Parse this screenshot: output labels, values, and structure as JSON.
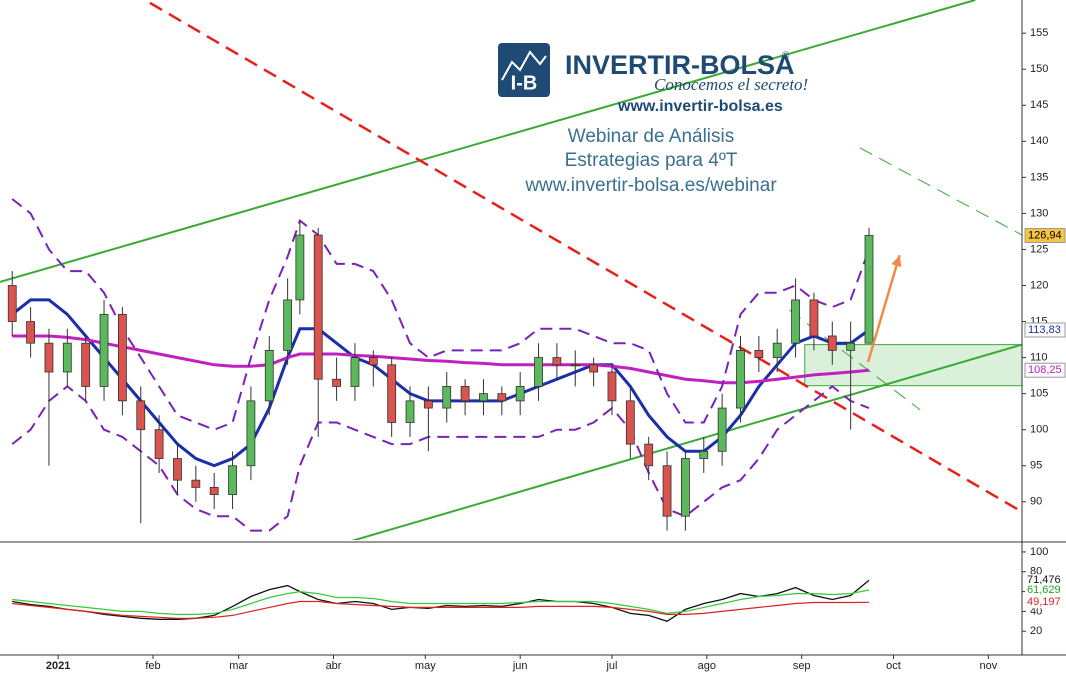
{
  "chart_data": {
    "type": "candlestick",
    "watermark": {
      "icon_text": "I-B",
      "brand": "INVERTIR-BOLSA",
      "registered": "®",
      "slogan": "Conocemos el secreto!",
      "site": "www.invertir-bolsa.es",
      "lines": [
        "Webinar de Análisis",
        "Estrategias para 4ºT",
        "www.invertir-bolsa.es/webinar"
      ]
    },
    "x": [
      -14,
      -8,
      -2,
      4,
      10,
      16,
      22,
      28,
      34,
      40,
      46,
      52,
      58,
      64,
      70,
      76,
      80,
      86,
      92,
      98,
      104,
      110,
      116,
      122,
      128,
      134,
      140,
      146,
      152,
      158,
      164,
      170,
      176,
      182,
      188,
      194,
      200,
      206,
      212,
      218,
      224,
      230,
      236,
      242,
      248,
      254,
      260,
      266
    ],
    "xlim": [
      -18,
      316
    ],
    "xticks": [
      {
        "value": 1,
        "label": "2021"
      },
      {
        "value": 32,
        "label": "feb"
      },
      {
        "value": 60,
        "label": "mar"
      },
      {
        "value": 91,
        "label": "abr"
      },
      {
        "value": 121,
        "label": "may"
      },
      {
        "value": 152,
        "label": "jun"
      },
      {
        "value": 182,
        "label": "jul"
      },
      {
        "value": 213,
        "label": "ago"
      },
      {
        "value": 244,
        "label": "sep"
      },
      {
        "value": 274,
        "label": "oct"
      },
      {
        "value": 305,
        "label": "nov"
      }
    ],
    "ylim": [
      84.7,
      159.6
    ],
    "yticks": [
      90,
      95,
      100,
      105,
      110,
      115,
      120,
      125,
      130,
      135,
      140,
      145,
      150,
      155
    ],
    "up_color": "#5cb85c",
    "down_color": "#d9534f",
    "open": [
      120,
      115,
      112,
      108,
      112,
      106,
      116,
      104,
      100,
      96,
      93,
      92,
      91,
      95,
      104,
      111,
      118,
      127,
      107,
      106,
      110,
      109,
      101,
      104,
      103,
      106,
      104,
      105,
      104,
      106,
      110,
      109,
      109,
      108,
      104,
      98,
      95,
      88,
      96,
      97,
      103,
      111,
      110,
      112,
      118,
      113,
      111,
      112
    ],
    "high": [
      122,
      117,
      114,
      114,
      113,
      118,
      117,
      106,
      102,
      98,
      95,
      94,
      97,
      106,
      113,
      121,
      129,
      128,
      110,
      112,
      111,
      110,
      106,
      106,
      108,
      107,
      107,
      106,
      108,
      112,
      112,
      111,
      110,
      109,
      106,
      99,
      97,
      97,
      99,
      105,
      113,
      113,
      114,
      121,
      119,
      115,
      115,
      128
    ],
    "low": [
      113,
      110,
      95,
      106,
      104,
      104,
      102,
      87,
      94,
      91,
      90,
      89,
      89,
      93,
      102,
      109,
      116,
      99,
      104,
      104,
      106,
      99,
      99,
      97,
      101,
      102,
      102,
      102,
      102,
      104,
      107,
      106,
      106,
      102,
      96,
      93,
      86,
      86,
      94,
      95,
      101,
      108,
      108,
      110,
      111,
      109,
      100,
      112
    ],
    "close": [
      115,
      112,
      108,
      112,
      106,
      116,
      104,
      100,
      96,
      93,
      92,
      91,
      95,
      104,
      111,
      118,
      127,
      107,
      106,
      110,
      109,
      101,
      104,
      103,
      106,
      104,
      105,
      104,
      106,
      110,
      109,
      109,
      108,
      104,
      98,
      95,
      88,
      96,
      97,
      103,
      111,
      110,
      112,
      118,
      113,
      111,
      112,
      126.94
    ],
    "series": [
      {
        "color": "#1a2fa8",
        "width": 3,
        "dash": false,
        "values": [
          116,
          118,
          118,
          116,
          113,
          110,
          107,
          104,
          101,
          98,
          96,
          95,
          96,
          98,
          103,
          110,
          114,
          114,
          112,
          110,
          109,
          107,
          105,
          104,
          104,
          104,
          104,
          104,
          105,
          106,
          107,
          108,
          109,
          109,
          106,
          102,
          99,
          97,
          97,
          99,
          102,
          106,
          109,
          112,
          113,
          112,
          112,
          113.83
        ]
      },
      {
        "color": "#c020c0",
        "width": 3,
        "dash": false,
        "values": [
          113,
          113,
          113,
          112.8,
          112.5,
          112,
          111.5,
          111,
          110.5,
          110,
          109.5,
          109,
          108.8,
          108.8,
          109,
          110,
          110.5,
          110.5,
          110.5,
          110.3,
          110.2,
          110,
          109.8,
          109.6,
          109.5,
          109.3,
          109.2,
          109,
          109,
          109,
          109,
          109,
          109,
          108.8,
          108.5,
          108,
          107.5,
          107,
          106.8,
          106.5,
          106.5,
          106.7,
          107,
          107.3,
          107.6,
          107.8,
          108,
          108.25
        ]
      },
      {
        "color": "#7a22b8",
        "width": 2,
        "dash": true,
        "values": [
          132,
          130,
          125,
          122,
          122,
          119,
          114,
          110,
          106,
          102,
          101,
          100,
          101,
          110,
          118,
          124,
          129,
          127,
          123,
          123,
          122,
          118,
          112,
          110,
          111,
          111,
          111,
          111,
          112,
          114,
          114,
          114,
          113,
          112,
          112,
          111,
          105,
          101,
          101,
          106,
          116,
          119,
          119,
          120,
          118,
          117,
          118,
          125
        ]
      },
      {
        "color": "#7a22b8",
        "width": 2,
        "dash": true,
        "values": [
          98,
          100,
          104,
          106,
          104,
          100,
          99,
          97,
          95,
          91,
          89,
          88,
          88,
          86,
          86,
          88,
          95,
          101,
          101,
          100,
          99,
          98,
          98,
          99,
          99,
          99,
          99,
          99,
          99,
          99,
          100,
          100,
          101,
          103,
          100,
          94,
          89,
          88,
          90,
          92,
          93,
          96,
          100,
          102,
          104,
          106,
          104,
          103
        ]
      }
    ],
    "trendlines": [
      {
        "color": "#3aaa35",
        "width": 2,
        "dash": false,
        "x": [
          -18,
          300.7
        ],
        "y": [
          120.5,
          159.6
        ]
      },
      {
        "color": "#3aaa35",
        "width": 2,
        "dash": false,
        "x": [
          96.4,
          316
        ],
        "y": [
          84.5,
          111.8
        ]
      },
      {
        "color": "#e8201c",
        "width": 2.5,
        "dash": true,
        "x": [
          31,
          316
        ],
        "y": [
          159.2,
          88.6
        ]
      },
      {
        "color": "#3aaa35",
        "width": 1,
        "dash": true,
        "x": [
          263,
          316
        ],
        "y": [
          139.1,
          127
        ]
      },
      {
        "color": "#3aaa35",
        "width": 1,
        "dash": true,
        "x": [
          240,
          282.7
        ],
        "y": [
          116.6,
          102.75
        ]
      }
    ],
    "zone": {
      "color": "#3aaa35",
      "x": [
        245,
        316
      ],
      "y": [
        106.1,
        111.8
      ]
    },
    "arrow": {
      "color": "#f08a4b",
      "x": [
        265.7,
        276
      ],
      "y": [
        109.4,
        124.2
      ]
    },
    "price_tags": [
      {
        "value": 126.94,
        "label": "126,94",
        "bg": "#f5c542",
        "fg": "#000000"
      },
      {
        "value": 113.83,
        "label": "113,83",
        "bg": "#ffffff",
        "fg": "#1a2fa8"
      },
      {
        "value": 108.25,
        "label": "108,25",
        "bg": "#ffffff",
        "fg": "#c020c0"
      }
    ],
    "oscillator": {
      "ylim": [
        -4,
        107
      ],
      "yticks": [
        20,
        40,
        60,
        80,
        100
      ],
      "series": [
        {
          "color": "#111111",
          "values": [
            50,
            47,
            45,
            42,
            40,
            37,
            35,
            33,
            32,
            32,
            33,
            36,
            45,
            55,
            62,
            66,
            60,
            52,
            48,
            50,
            48,
            42,
            44,
            43,
            46,
            45,
            46,
            45,
            48,
            52,
            50,
            50,
            48,
            44,
            38,
            36,
            30,
            42,
            48,
            52,
            58,
            55,
            58,
            64,
            56,
            52,
            56,
            71.476
          ]
        },
        {
          "color": "#33cc33",
          "values": [
            52,
            50,
            48,
            46,
            44,
            42,
            40,
            40,
            38,
            37,
            37,
            38,
            42,
            48,
            54,
            58,
            60,
            58,
            54,
            54,
            53,
            50,
            48,
            48,
            48,
            48,
            48,
            48,
            49,
            50,
            50,
            50,
            50,
            48,
            45,
            42,
            38,
            40,
            44,
            48,
            52,
            55,
            56,
            58,
            58,
            57,
            58,
            61.629
          ]
        },
        {
          "color": "#dd2222",
          "values": [
            48,
            46,
            44,
            42,
            40,
            38,
            36,
            35,
            34,
            33,
            33,
            34,
            36,
            40,
            44,
            48,
            50,
            50,
            48,
            47,
            46,
            45,
            44,
            44,
            44,
            44,
            44,
            44,
            44,
            45,
            45,
            45,
            45,
            44,
            42,
            40,
            37,
            37,
            38,
            40,
            42,
            44,
            46,
            48,
            49,
            49,
            49,
            49.197
          ]
        }
      ],
      "tags": [
        {
          "value": 71.476,
          "label": "71,476",
          "fg": "#111111"
        },
        {
          "value": 61.629,
          "label": "61,629",
          "fg": "#22aa22"
        },
        {
          "value": 49.197,
          "label": "49,197",
          "fg": "#dd2222"
        }
      ]
    }
  }
}
